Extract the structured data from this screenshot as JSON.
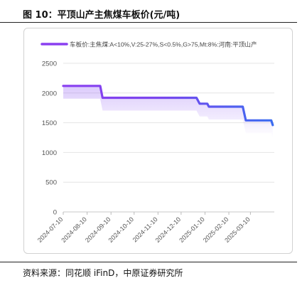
{
  "figure": {
    "title": "图 10：平顶山产主焦煤车板价(元/吨)",
    "source": "资料来源：同花顺 iFinD，中原证券研究所"
  },
  "chart_data": {
    "type": "line",
    "title": "",
    "xlabel": "",
    "ylabel": "",
    "ylim": [
      0,
      2500
    ],
    "yticks": [
      0,
      500,
      1000,
      1500,
      2000,
      2500
    ],
    "xlim": [
      "2024-07-10",
      "2025-04-10"
    ],
    "xticks": [
      "2024-07-10",
      "2024-08-10",
      "2024-09-10",
      "2024-10-10",
      "2024-11-10",
      "2024-12-10",
      "2025-01-10",
      "2025-02-10",
      "2025-03-10"
    ],
    "grid": true,
    "legend_position": "top",
    "series": [
      {
        "name": "车板价:主焦煤:A<10%,V:25-27%,S<0.5%,G>75,Mt:8%:河南:平顶山产",
        "color_start": "#8a3ff0",
        "color_end": "#3a6df0",
        "points": [
          {
            "x": "2024-07-10",
            "y": 2120
          },
          {
            "x": "2024-08-27",
            "y": 2120
          },
          {
            "x": "2024-08-30",
            "y": 1920
          },
          {
            "x": "2024-12-30",
            "y": 1920
          },
          {
            "x": "2025-01-03",
            "y": 1820
          },
          {
            "x": "2025-01-13",
            "y": 1820
          },
          {
            "x": "2025-01-15",
            "y": 1770
          },
          {
            "x": "2025-02-28",
            "y": 1770
          },
          {
            "x": "2025-03-04",
            "y": 1540
          },
          {
            "x": "2025-04-06",
            "y": 1540
          },
          {
            "x": "2025-04-08",
            "y": 1460
          }
        ]
      }
    ]
  }
}
